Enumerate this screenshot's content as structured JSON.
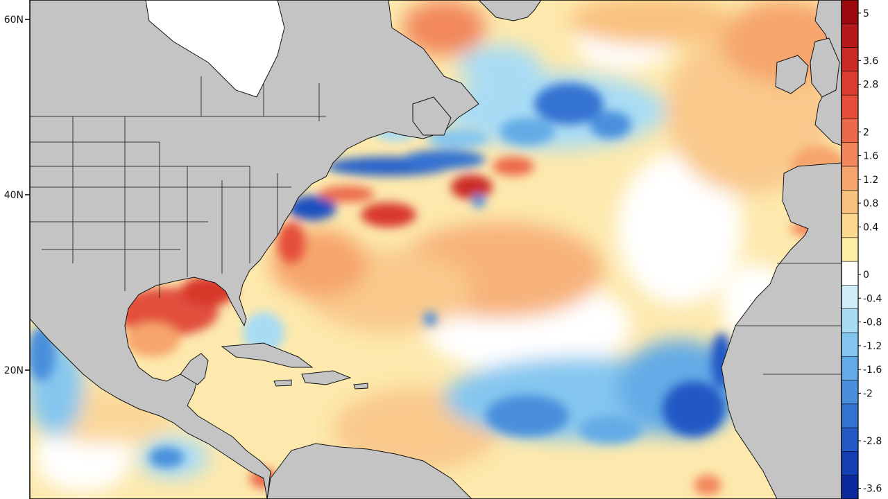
{
  "map": {
    "latitude_labels": [
      "60N",
      "40N",
      "20N"
    ]
  },
  "colorbar": {
    "tick_labels": [
      "5",
      "3.6",
      "2.8",
      "2",
      "1.6",
      "1.2",
      "0.8",
      "0.4",
      "0",
      "-0.4",
      "-0.8",
      "-1.2",
      "-1.6",
      "-2",
      "-2.8",
      "-3.6"
    ],
    "colors": [
      "#9e0b0e",
      "#b5191b",
      "#cc2a26",
      "#dc3b30",
      "#e54f3a",
      "#ec6a4b",
      "#f2875c",
      "#f6a56c",
      "#f9c17e",
      "#fcd98f",
      "#fdeea6",
      "#ffffff",
      "#cfeefa",
      "#a8dcf5",
      "#84c6ef",
      "#63abe6",
      "#4a8fdc",
      "#3473d1",
      "#2259c4",
      "#143fb2",
      "#0c2a9c"
    ]
  },
  "colors": {
    "land": "#c4c4c4",
    "background": "#ffffff",
    "border": "#000000"
  }
}
